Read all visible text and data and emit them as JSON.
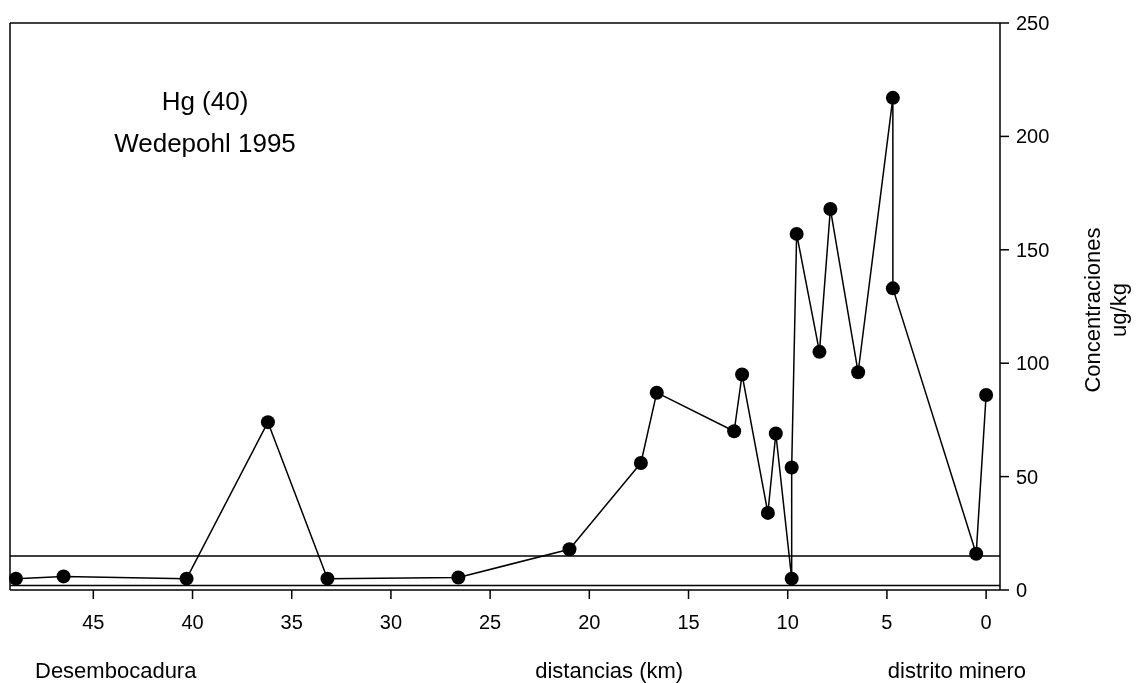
{
  "chart_data": {
    "type": "line",
    "xlabel": "distancias (km)",
    "ylabel": "Concentraciones ug/kg",
    "x": [
      48.9,
      46.5,
      40.3,
      36.2,
      33.2,
      26.6,
      21.0,
      17.4,
      16.6,
      12.7,
      12.3,
      11.0,
      10.6,
      9.8,
      9.8,
      9.55,
      8.4,
      7.85,
      6.45,
      4.7,
      4.7,
      0.5,
      0
    ],
    "series": [
      {
        "color": "#000000",
        "values": [
          5,
          6,
          5,
          74,
          5,
          5.5,
          18,
          56,
          87,
          70,
          95,
          34,
          69,
          5,
          54,
          157,
          105,
          168,
          96,
          217,
          133,
          16,
          86
        ]
      }
    ],
    "xlim": [
      49.2,
      -0.7
    ],
    "xticks": [
      45,
      40,
      35,
      30,
      25,
      20,
      15,
      10,
      5,
      0
    ],
    "ylim": [
      0,
      250
    ],
    "yticks": [
      0,
      50,
      100,
      150,
      200,
      250
    ],
    "ref_lines": [
      {
        "axis": "y",
        "value": 15,
        "color": "#000000"
      },
      {
        "axis": "y",
        "value": 2,
        "color": "#000000"
      }
    ],
    "annotations": [
      "Hg (40)",
      "Wedepohl 1995",
      "Desembocadura",
      "distrito minero"
    ],
    "marker": "circle",
    "line_style": "solid",
    "grid": false
  }
}
